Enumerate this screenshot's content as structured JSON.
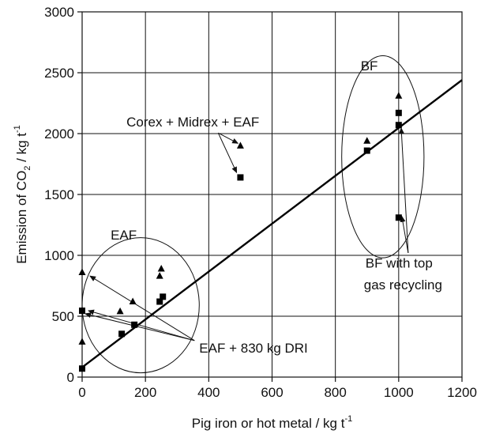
{
  "chart_data": {
    "type": "scatter",
    "title": "",
    "xlabel": "Pig iron or hot metal / kg t",
    "xlabel_sup": "-1",
    "ylabel_parts": {
      "pre": "Emission of CO",
      "sub": "2",
      "mid": " / kg t",
      "sup": "-1"
    },
    "xlim": [
      0,
      1200
    ],
    "ylim": [
      0,
      3000
    ],
    "xticks": [
      "0",
      "200",
      "400",
      "600",
      "800",
      "1000",
      "1200"
    ],
    "yticks": [
      "0",
      "500",
      "1000",
      "1500",
      "2000",
      "2500",
      "3000"
    ],
    "grid": true,
    "series": [
      {
        "marker": "triangle",
        "x": [
          0,
          0,
          120,
          160,
          245,
          250,
          900,
          1000,
          500
        ],
        "y": [
          290,
          860,
          540,
          620,
          830,
          890,
          1940,
          2310,
          1900
        ]
      },
      {
        "marker": "square",
        "x": [
          0,
          0,
          125,
          165,
          245,
          255,
          900,
          1000,
          1000,
          1000,
          500
        ],
        "y": [
          70,
          545,
          355,
          430,
          620,
          660,
          1860,
          2170,
          2070,
          1310,
          1640
        ]
      }
    ],
    "fit_line": {
      "x": [
        0,
        1200
      ],
      "y": [
        80,
        2440
      ]
    },
    "ellipses": [
      {
        "label": "EAF",
        "cx": 185,
        "cy": 590,
        "rx": 185,
        "ry": 555
      },
      {
        "label": "BF",
        "cx": 950,
        "cy": 1810,
        "rx": 130,
        "ry": 830
      }
    ],
    "annotations": [
      {
        "text": "BF",
        "x": 880,
        "y": 2520
      },
      {
        "text": "EAF",
        "x": 90,
        "y": 1130
      },
      {
        "text": "Corex + Midrex + EAF",
        "x": 140,
        "y": 2060
      },
      {
        "text": "EAF + 830 kg DRI",
        "x": 370,
        "y": 200
      },
      {
        "text": "BF with top",
        "x": 895,
        "y": 900
      },
      {
        "text": "gas recycling",
        "x": 890,
        "y": 720
      }
    ],
    "arrows": [
      {
        "from": [
          430,
          2005
        ],
        "to": [
          492,
          1920
        ]
      },
      {
        "from": [
          430,
          2005
        ],
        "to": [
          488,
          1680
        ]
      },
      {
        "from": [
          355,
          300
        ],
        "to": [
          25,
          830
        ]
      },
      {
        "from": [
          355,
          300
        ],
        "to": [
          20,
          545
        ]
      },
      {
        "from": [
          355,
          300
        ],
        "to": [
          10,
          520
        ]
      },
      {
        "from": [
          1030,
          1020
        ],
        "to": [
          1008,
          2045
        ]
      },
      {
        "from": [
          1030,
          1020
        ],
        "to": [
          1010,
          1320
        ]
      }
    ]
  }
}
